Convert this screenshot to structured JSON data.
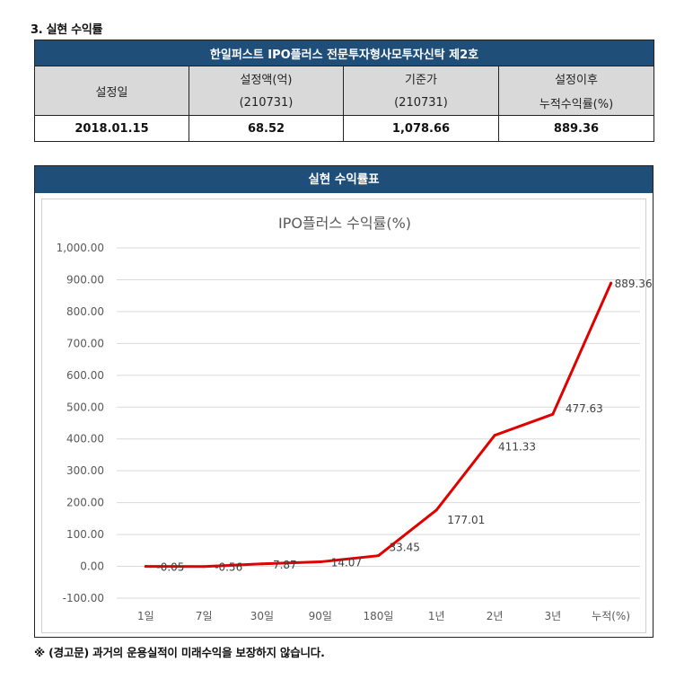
{
  "section_title": "3. 실현 수익률",
  "fund_name": "한일퍼스트 IPO플러스 전문투자형사모투자신탁 제2호",
  "table": {
    "headers": {
      "setup_date": "설정일",
      "setup_amount_line1": "설정액(억)",
      "setup_amount_line2": "(210731)",
      "base_price_line1": "기준가",
      "base_price_line2": "(210731)",
      "cumulative_line1": "설정이후",
      "cumulative_line2": "누적수익률(%)"
    },
    "values": {
      "setup_date": "2018.01.15",
      "setup_amount": "68.52",
      "base_price": "1,078.66",
      "cumulative_return": "889.36"
    }
  },
  "chart_panel_title": "실현 수익률표",
  "warning": "※ (경고문) 과거의 운용실적이 미래수익을 보장하지 않습니다.",
  "chart_data": {
    "type": "line",
    "title": "IPO플러스 수익률(%)",
    "categories": [
      "1일",
      "7일",
      "30일",
      "90일",
      "180일",
      "1년",
      "2년",
      "3년",
      "누적(%)"
    ],
    "values": [
      -0.05,
      -0.56,
      7.87,
      14.07,
      33.45,
      177.01,
      411.33,
      477.63,
      889.36
    ],
    "data_labels": [
      "-0.05",
      "-0.56",
      "7.87",
      "14.07",
      "33.45",
      "177.01",
      "411.33",
      "477.63",
      "889.36"
    ],
    "ylim": [
      -100,
      1000
    ],
    "y_ticks": [
      -100,
      0,
      100,
      200,
      300,
      400,
      500,
      600,
      700,
      800,
      900,
      1000
    ],
    "y_tick_labels": [
      "-100.00",
      "0.00",
      "100.00",
      "200.00",
      "300.00",
      "400.00",
      "500.00",
      "600.00",
      "700.00",
      "800.00",
      "900.00",
      "1,000.00"
    ],
    "grid": true,
    "legend": "none",
    "line_color": "#e00000",
    "grid_color": "#d9d9d9"
  },
  "colors": {
    "header_navy": "#1f4e79",
    "header_gray": "#d9d9d9"
  }
}
